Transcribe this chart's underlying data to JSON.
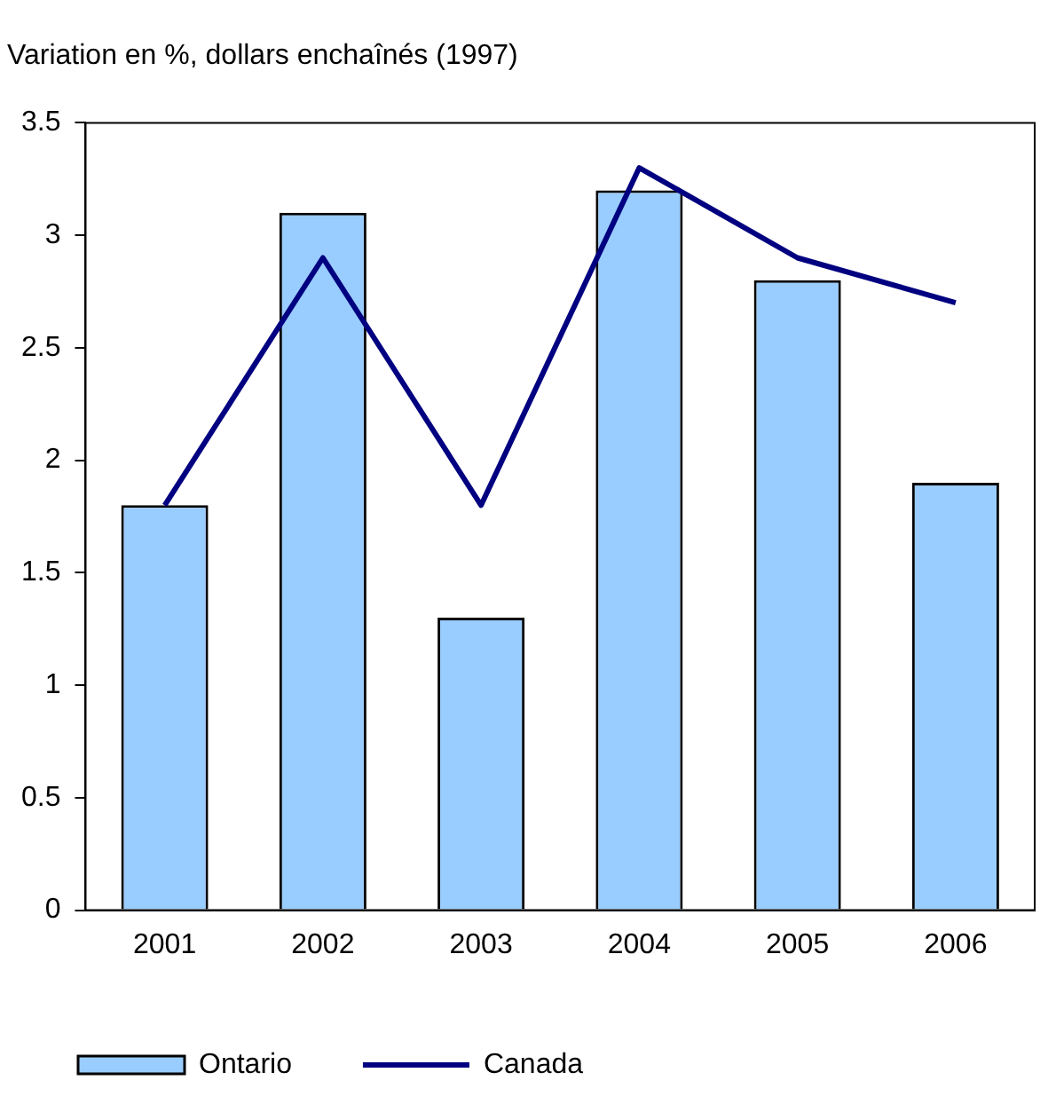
{
  "chart_data": {
    "type": "bar",
    "title": "Variation en %, dollars enchaînés (1997)",
    "categories": [
      "2001",
      "2002",
      "2003",
      "2004",
      "2005",
      "2006"
    ],
    "series": [
      {
        "name": "Ontario",
        "color": "#99ccff",
        "values": [
          1.8,
          3.1,
          1.3,
          3.2,
          2.8,
          1.9
        ]
      },
      {
        "name": "Canada",
        "type": "line",
        "color": "#000080",
        "values": [
          1.8,
          2.9,
          1.8,
          3.3,
          2.9,
          2.7
        ]
      }
    ],
    "ylim": [
      0,
      3.5
    ],
    "yticks": [
      0,
      0.5,
      1,
      1.5,
      2,
      2.5,
      3,
      3.5
    ],
    "grid": false,
    "legend": "bottom",
    "marker": "none",
    "line_style": "solid"
  }
}
